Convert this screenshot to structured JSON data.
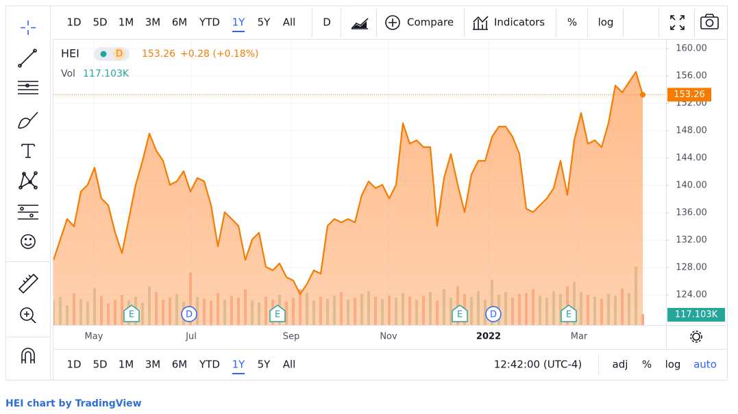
{
  "toolbar": {
    "ranges": [
      "1D",
      "5D",
      "1M",
      "3M",
      "6M",
      "YTD",
      "1Y",
      "5Y",
      "All"
    ],
    "active_range": "1Y",
    "interval": "D",
    "compare": "Compare",
    "indicators": "Indicators",
    "percent": "%",
    "log": "log"
  },
  "legend": {
    "symbol": "HEI",
    "interval": "D",
    "price": "153.26",
    "change": "+0.28 (+0.18%)",
    "volume_title": "Vol",
    "volume": "117.103K"
  },
  "chart_data": {
    "type": "area",
    "color": "#f57c00",
    "values": [
      129.1,
      132.1,
      135.1,
      134.0,
      139.1,
      140.1,
      142.6,
      138.1,
      137.1,
      133.1,
      130.1,
      135.1,
      140.1,
      143.6,
      147.6,
      145.1,
      143.6,
      140.1,
      140.6,
      142.1,
      139.1,
      141.1,
      140.6,
      137.1,
      131.1,
      136.1,
      135.1,
      134.1,
      129.1,
      132.1,
      133.1,
      128.1,
      127.6,
      128.6,
      126.6,
      126.1,
      124.1,
      125.6,
      127.6,
      127.1,
      134.1,
      135.1,
      134.6,
      135.1,
      134.6,
      138.6,
      140.6,
      139.6,
      140.1,
      138.1,
      140.1,
      149.1,
      146.1,
      146.6,
      145.6,
      145.6,
      134.1,
      141.1,
      144.6,
      140.1,
      136.1,
      141.6,
      143.6,
      143.6,
      147.1,
      148.6,
      148.6,
      147.1,
      144.6,
      136.6,
      136.1,
      137.1,
      138.1,
      139.6,
      143.6,
      138.6,
      146.6,
      150.6,
      146.1,
      146.6,
      145.6,
      149.1,
      154.6,
      153.6,
      155.1,
      156.6,
      153.26
    ],
    "xlim": [
      0,
      86
    ],
    "xticks": [
      {
        "value": 5.9,
        "label": "May"
      },
      {
        "value": 20.1,
        "label": "Jul"
      },
      {
        "value": 34.7,
        "label": "Sep"
      },
      {
        "value": 48.9,
        "label": "Nov"
      },
      {
        "value": 63.5,
        "label": "2022"
      },
      {
        "value": 76.7,
        "label": "Mar"
      }
    ],
    "ylim": [
      119.6,
      161.4
    ],
    "yticks": [
      {
        "value": 124,
        "label": "124.00"
      },
      {
        "value": 128,
        "label": "128.00"
      },
      {
        "value": 132,
        "label": "132.00"
      },
      {
        "value": 136,
        "label": "136.00"
      },
      {
        "value": 140,
        "label": "140.00"
      },
      {
        "value": 144,
        "label": "144.00"
      },
      {
        "value": 148,
        "label": "148.00"
      },
      {
        "value": 152,
        "label": "152.00"
      },
      {
        "value": 156,
        "label": "156.00"
      },
      {
        "value": 160,
        "label": "160.00"
      }
    ],
    "grid": true,
    "volume": {
      "values": [
        260,
        300,
        210,
        340,
        280,
        250,
        390,
        310,
        230,
        270,
        320,
        260,
        300,
        240,
        410,
        350,
        270,
        290,
        330,
        250,
        560,
        300,
        280,
        260,
        340,
        270,
        310,
        290,
        380,
        260,
        240,
        300,
        270,
        320,
        250,
        290,
        380,
        340,
        260,
        300,
        280,
        310,
        350,
        270,
        290,
        330,
        360,
        300,
        280,
        310,
        290,
        340,
        300,
        270,
        310,
        350,
        260,
        380,
        290,
        410,
        330,
        300,
        360,
        270,
        480,
        320,
        350,
        290,
        330,
        340,
        380,
        310,
        290,
        360,
        330,
        410,
        460,
        350,
        320,
        300,
        280,
        330,
        310,
        390,
        340,
        620,
        117.103
      ],
      "lim": [
        0,
        800
      ],
      "up_color": "#8fbf98",
      "down_color": "#ef8a70",
      "label_color": "#26a69a"
    },
    "events": [
      {
        "label": "E",
        "x": 11.4,
        "shape": "flag",
        "color": "#26a69a"
      },
      {
        "label": "D",
        "x": 19.8,
        "shape": "circle",
        "color": "#2962ff"
      },
      {
        "label": "E",
        "x": 32.7,
        "shape": "flag",
        "color": "#26a69a"
      },
      {
        "label": "E",
        "x": 59.3,
        "shape": "flag",
        "color": "#26a69a"
      },
      {
        "label": "D",
        "x": 64.2,
        "shape": "circle",
        "color": "#2962ff"
      },
      {
        "label": "E",
        "x": 75.2,
        "shape": "flag",
        "color": "#26a69a"
      }
    ]
  },
  "bottom_bar": {
    "ranges": [
      "1D",
      "5D",
      "1M",
      "3M",
      "6M",
      "YTD",
      "1Y",
      "5Y",
      "All"
    ],
    "active_range": "1Y",
    "time": "12:42:00 (UTC-4)",
    "adj": "adj",
    "percent": "%",
    "log": "log",
    "auto": "auto"
  },
  "footer": "HEI chart by TradingView"
}
